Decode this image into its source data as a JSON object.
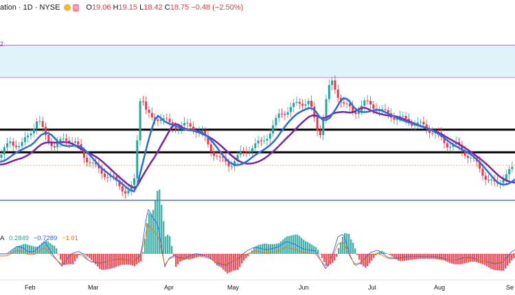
{
  "header": {
    "symbol_text": "ation · 1D · NYSE",
    "open_label": "O",
    "open_value": "19.06",
    "high_label": "H",
    "high_value": "19.15",
    "low_label": "L",
    "low_value": "18.42",
    "close_label": "C",
    "close_value": "18.75",
    "change_text": "−0.48 (−2.50%)"
  },
  "range_label": "2",
  "macd_legend": {
    "prefix": "A",
    "histogram": "0.2849",
    "macd": "−0.7289",
    "signal": "−1.01",
    "colors": {
      "histogram": "#26a69a",
      "macd": "#2962ff",
      "signal": "#ff6d00"
    }
  },
  "x_axis": {
    "labels": [
      "Feb",
      "Mar",
      "Apr",
      "May",
      "Jun",
      "Jul",
      "Aug",
      "Se"
    ]
  },
  "colors": {
    "up": "#26a69a",
    "down": "#f23645",
    "ma_fast": "#2f6fdc",
    "ma_slow": "#7b2aa3",
    "zone_fill": "#dff3fb",
    "zone_border": "#b25dc7",
    "support_line": "#2f5c9e",
    "level_lines": "#000000"
  },
  "chart_data": {
    "type": "candlestick",
    "indicators": [
      "fast moving average",
      "slow moving average",
      "MACD"
    ],
    "horizontal_levels": [
      "resistance band",
      "upper black level",
      "lower black level",
      "support line"
    ],
    "x_labels": [
      "Feb",
      "Mar",
      "Apr",
      "May",
      "Jun",
      "Jul",
      "Aug",
      "Se"
    ],
    "last_close": 18.75
  }
}
